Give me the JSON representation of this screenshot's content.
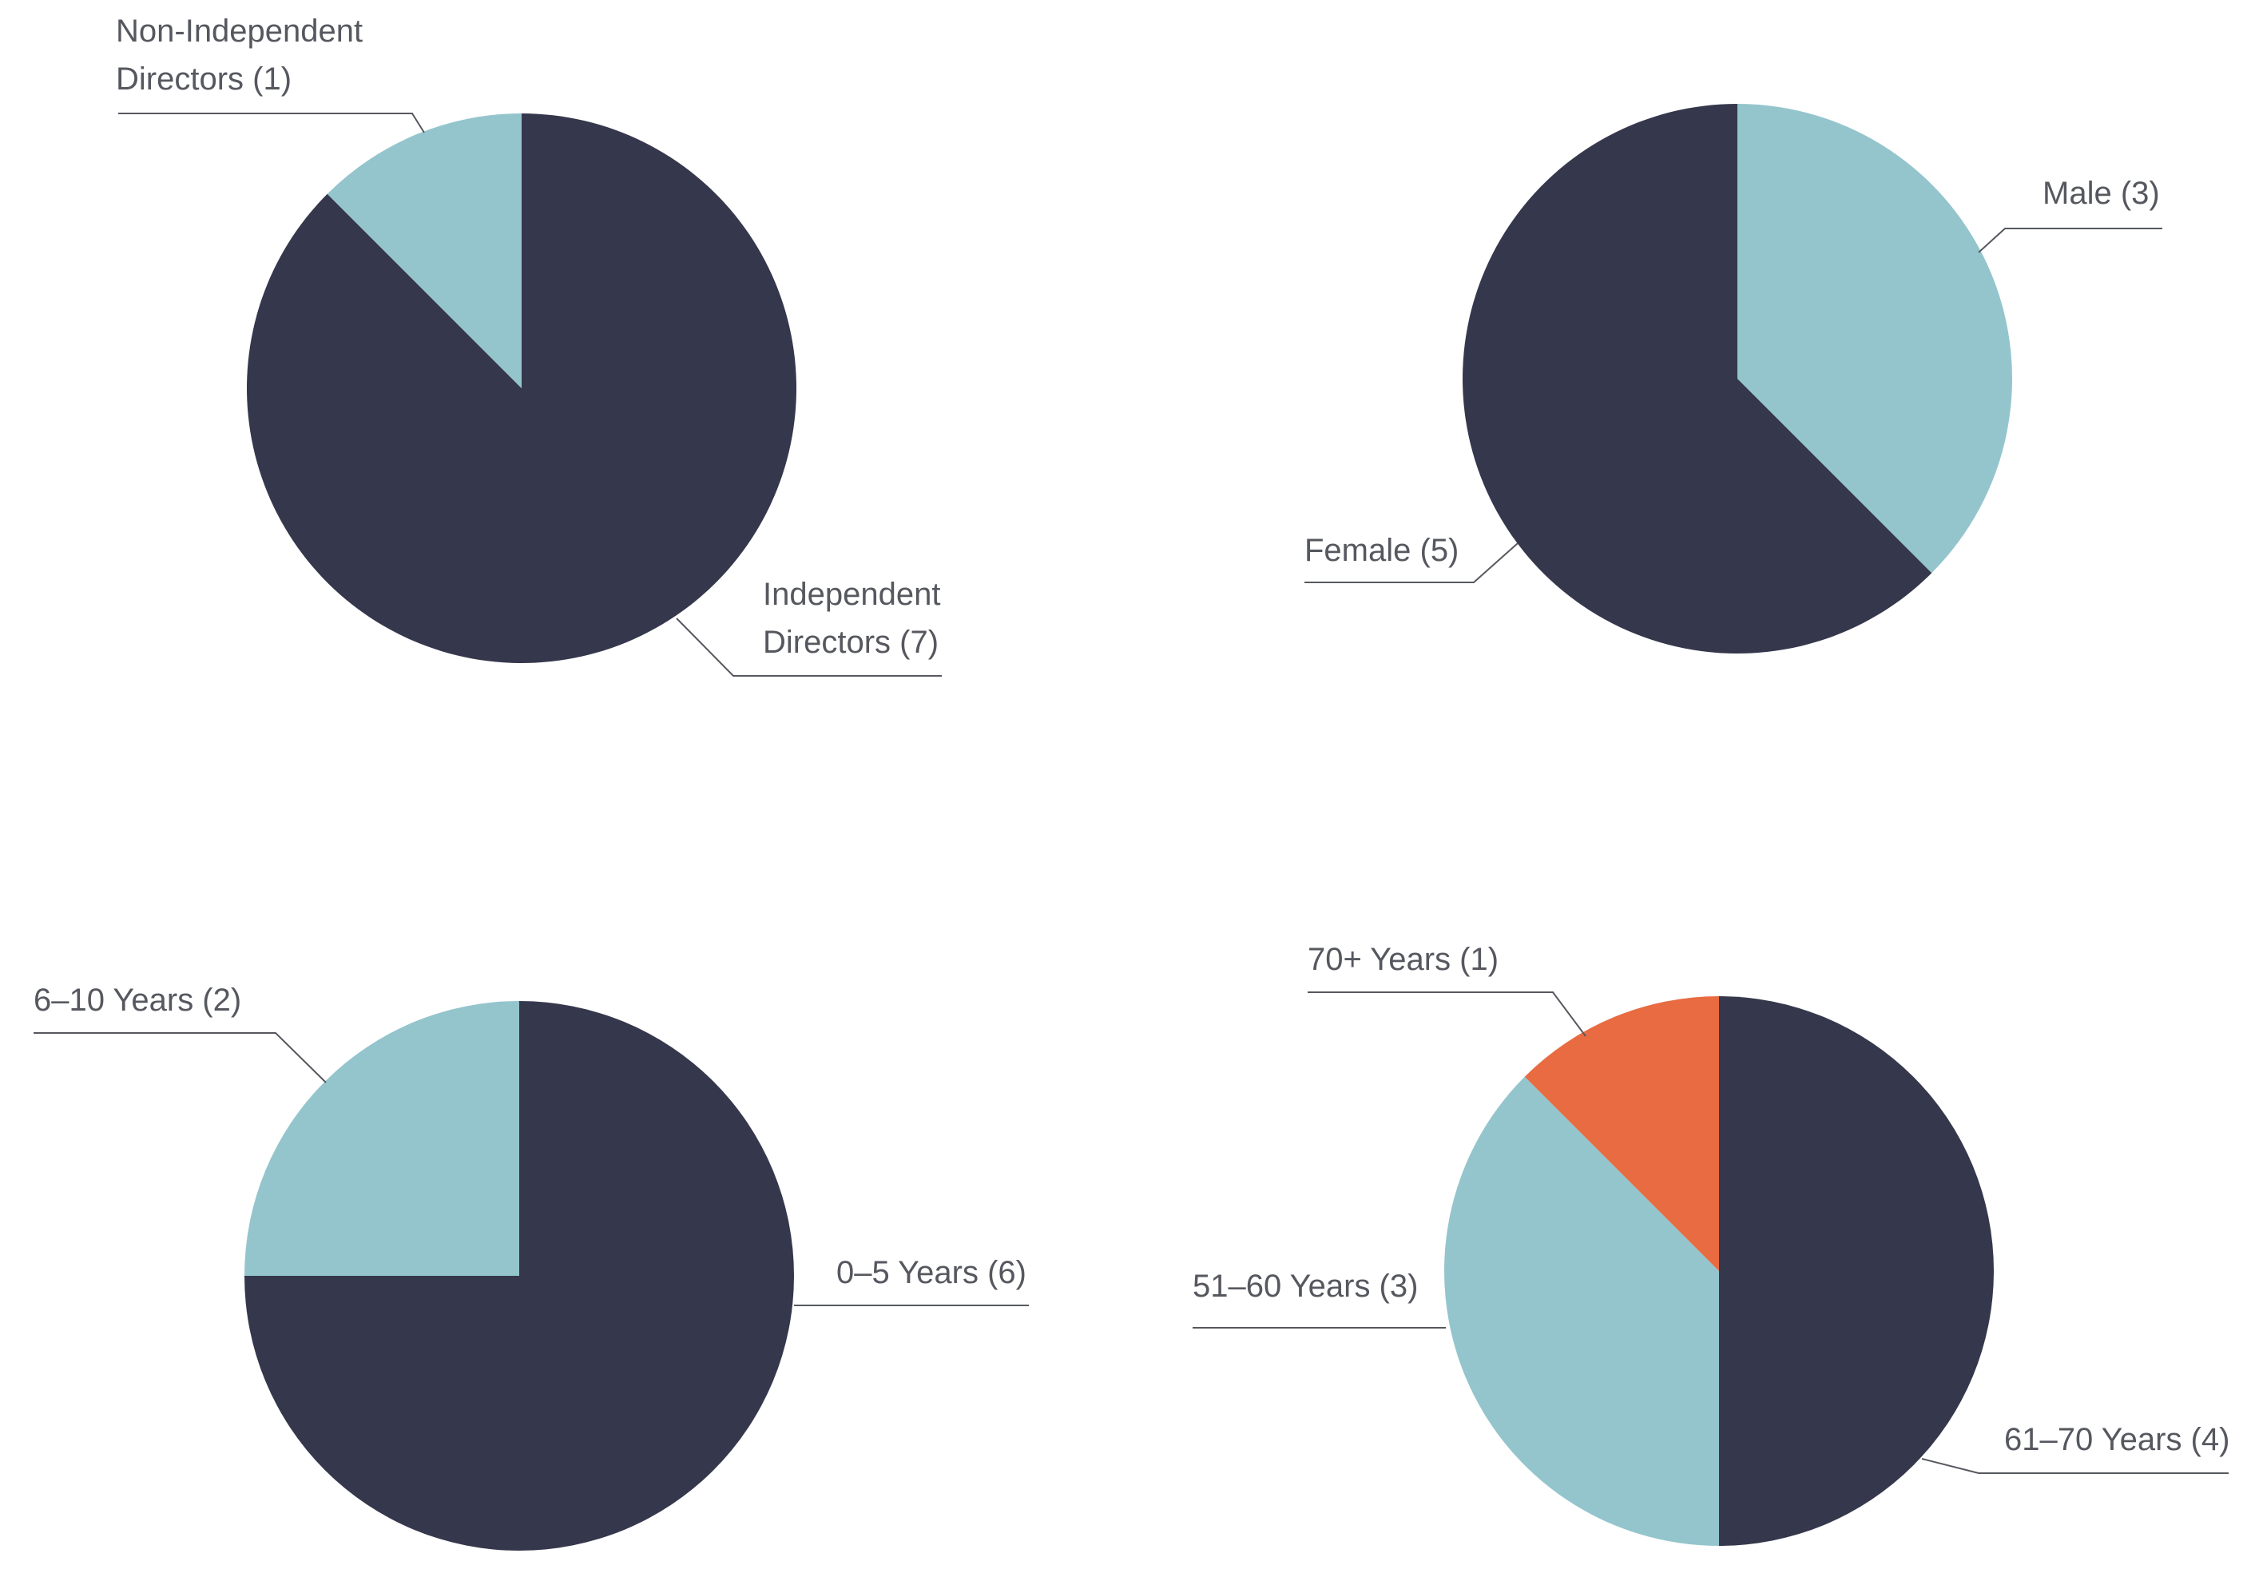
{
  "colors": {
    "dark": "#35374c",
    "light": "#94c5cd",
    "accent": "#e86b42",
    "text": "#56585f",
    "line": "#56585f"
  },
  "chart_data": [
    {
      "type": "pie",
      "start": "12 o'clock",
      "direction": "clockwise",
      "slices": [
        {
          "label_lines": [
            "Independent",
            "Directors (7)"
          ],
          "value": 7,
          "color": "dark"
        },
        {
          "label_lines": [
            "Non-Independent",
            "Directors (1)"
          ],
          "value": 1,
          "color": "light"
        }
      ]
    },
    {
      "type": "pie",
      "start": "12 o'clock",
      "direction": "clockwise",
      "slices": [
        {
          "label_lines": [
            "Male (3)"
          ],
          "value": 3,
          "color": "light"
        },
        {
          "label_lines": [
            "Female (5)"
          ],
          "value": 5,
          "color": "dark"
        }
      ]
    },
    {
      "type": "pie",
      "start": "12 o'clock",
      "direction": "clockwise",
      "slices": [
        {
          "label_lines": [
            "0–5 Years (6)"
          ],
          "value": 6,
          "color": "dark"
        },
        {
          "label_lines": [
            "6–10 Years (2)"
          ],
          "value": 2,
          "color": "light"
        }
      ]
    },
    {
      "type": "pie",
      "start": "12 o'clock",
      "direction": "clockwise",
      "slices": [
        {
          "label_lines": [
            "61–70 Years (4)"
          ],
          "value": 4,
          "color": "dark"
        },
        {
          "label_lines": [
            "51–60 Years (3)"
          ],
          "value": 3,
          "color": "light"
        },
        {
          "label_lines": [
            "70+ Years (1)"
          ],
          "value": 1,
          "color": "accent"
        }
      ]
    }
  ]
}
